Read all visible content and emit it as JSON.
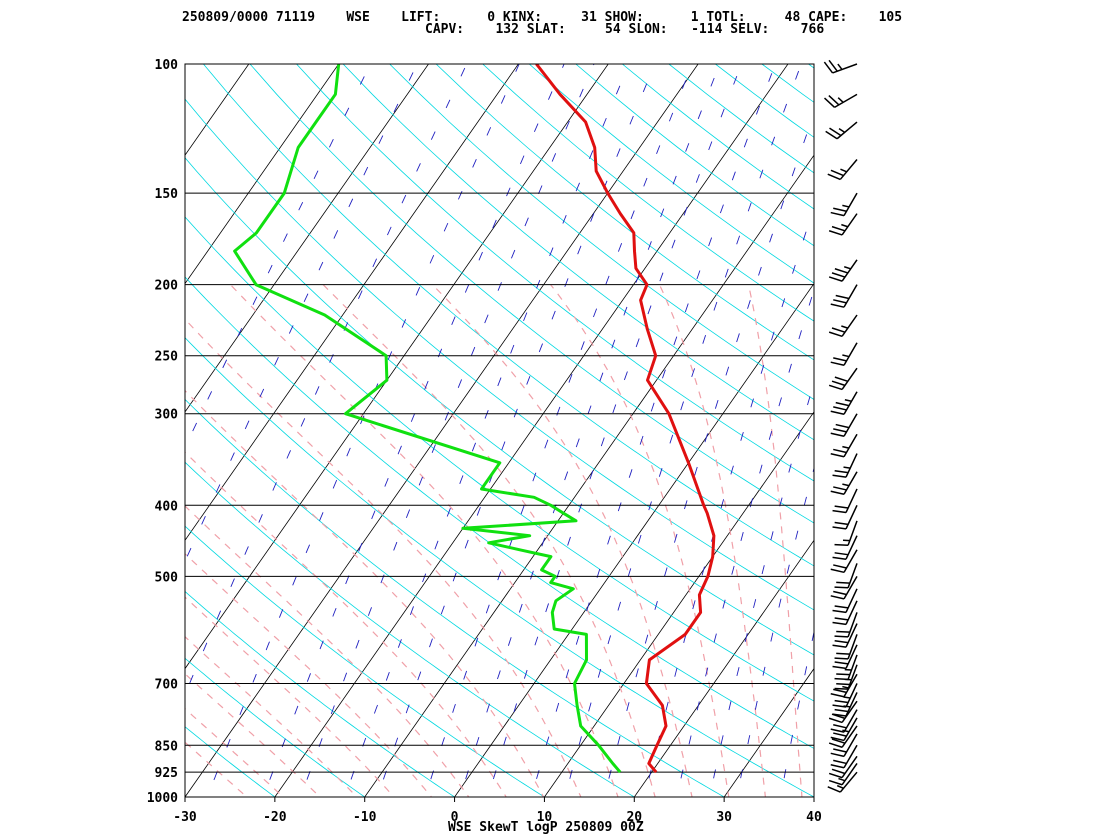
{
  "header": {
    "line1": "250809/0000 71119    WSE    LIFT:      0 KINX:     31 SHOW:      1 TOTL:     48 CAPE:    105",
    "line2": "CAPV:    132 SLAT:     54 SLON:   -114 SELV:    766"
  },
  "footer": "WSE SkewT logP 250809 00Z",
  "colors": {
    "isotherm": "#000000",
    "isobar": "#000000",
    "dry_adiabat": "#00d8e0",
    "moist_adiabat": "#f0a0a8",
    "mixing_ratio": "#2020c0",
    "temperature": "#e01010",
    "dewpoint": "#10e010",
    "wind_barb": "#000000"
  },
  "chart_data": {
    "type": "skewt-logp",
    "title": "WSE SkewT logP 250809 00Z",
    "station": "71119",
    "xlim": [
      -30,
      40
    ],
    "ylim": [
      1000,
      100
    ],
    "x_ticks": [
      "-30",
      "-20",
      "-10",
      "0",
      "10",
      "20",
      "30",
      "40"
    ],
    "y_ticks": [
      "100",
      "150",
      "200",
      "250",
      "300",
      "400",
      "500",
      "700",
      "850",
      "925",
      "1000"
    ],
    "pressure_levels": [
      1000,
      925,
      850,
      700,
      500,
      400,
      300,
      250,
      200,
      150,
      100
    ],
    "temperature_profile": [
      [
        925,
        20.5
      ],
      [
        900,
        19.0
      ],
      [
        850,
        18.5
      ],
      [
        800,
        18.0
      ],
      [
        750,
        16.0
      ],
      [
        700,
        12.5
      ],
      [
        650,
        11.0
      ],
      [
        600,
        13.0
      ],
      [
        560,
        13.0
      ],
      [
        530,
        11.5
      ],
      [
        500,
        11.0
      ],
      [
        470,
        10.0
      ],
      [
        440,
        8.5
      ],
      [
        410,
        6.0
      ],
      [
        400,
        5.0
      ],
      [
        350,
        0.0
      ],
      [
        300,
        -6.0
      ],
      [
        270,
        -11.0
      ],
      [
        250,
        -12.0
      ],
      [
        230,
        -15.0
      ],
      [
        210,
        -18.0
      ],
      [
        200,
        -18.5
      ],
      [
        190,
        -21.0
      ],
      [
        180,
        -22.5
      ],
      [
        170,
        -24.0
      ],
      [
        160,
        -27.0
      ],
      [
        150,
        -30.0
      ],
      [
        140,
        -33.0
      ],
      [
        130,
        -35.0
      ],
      [
        120,
        -38.0
      ],
      [
        110,
        -43.0
      ],
      [
        100,
        -48.0
      ]
    ],
    "dewpoint_profile": [
      [
        925,
        16.5
      ],
      [
        900,
        15.0
      ],
      [
        850,
        12.0
      ],
      [
        800,
        8.5
      ],
      [
        750,
        6.5
      ],
      [
        700,
        4.5
      ],
      [
        650,
        4.0
      ],
      [
        600,
        2.0
      ],
      [
        590,
        -2.0
      ],
      [
        560,
        -3.5
      ],
      [
        540,
        -4.0
      ],
      [
        520,
        -3.0
      ],
      [
        510,
        -6.0
      ],
      [
        500,
        -6.0
      ],
      [
        490,
        -8.0
      ],
      [
        470,
        -8.0
      ],
      [
        460,
        -12.0
      ],
      [
        450,
        -16.0
      ],
      [
        440,
        -12.0
      ],
      [
        430,
        -20.0
      ],
      [
        420,
        -8.0
      ],
      [
        410,
        -10.0
      ],
      [
        400,
        -12.0
      ],
      [
        390,
        -14.5
      ],
      [
        380,
        -21.0
      ],
      [
        350,
        -21.0
      ],
      [
        300,
        -42.0
      ],
      [
        270,
        -40.0
      ],
      [
        250,
        -42.0
      ],
      [
        220,
        -52.0
      ],
      [
        200,
        -62.0
      ],
      [
        180,
        -67.0
      ],
      [
        170,
        -66.0
      ],
      [
        150,
        -66.0
      ],
      [
        130,
        -68.0
      ],
      [
        120,
        -68.0
      ],
      [
        110,
        -68.0
      ],
      [
        100,
        -70.0
      ]
    ],
    "wind_profile": [
      [
        925,
        220,
        15
      ],
      [
        900,
        215,
        15
      ],
      [
        880,
        215,
        20
      ],
      [
        850,
        210,
        20
      ],
      [
        820,
        210,
        20
      ],
      [
        800,
        215,
        20
      ],
      [
        780,
        210,
        25
      ],
      [
        760,
        210,
        20
      ],
      [
        740,
        215,
        20
      ],
      [
        720,
        205,
        25
      ],
      [
        700,
        205,
        25
      ],
      [
        680,
        210,
        25
      ],
      [
        660,
        200,
        25
      ],
      [
        640,
        200,
        25
      ],
      [
        620,
        205,
        20
      ],
      [
        600,
        200,
        20
      ],
      [
        580,
        205,
        20
      ],
      [
        560,
        200,
        20
      ],
      [
        540,
        205,
        20
      ],
      [
        520,
        205,
        20
      ],
      [
        500,
        210,
        20
      ],
      [
        480,
        200,
        20
      ],
      [
        460,
        210,
        20
      ],
      [
        440,
        205,
        20
      ],
      [
        420,
        200,
        15
      ],
      [
        400,
        205,
        20
      ],
      [
        380,
        205,
        20
      ],
      [
        360,
        210,
        25
      ],
      [
        340,
        205,
        25
      ],
      [
        320,
        210,
        25
      ],
      [
        300,
        210,
        30
      ],
      [
        280,
        210,
        35
      ],
      [
        260,
        215,
        30
      ],
      [
        240,
        210,
        25
      ],
      [
        220,
        215,
        25
      ],
      [
        200,
        210,
        30
      ],
      [
        185,
        215,
        35
      ],
      [
        160,
        215,
        25
      ],
      [
        150,
        210,
        25
      ],
      [
        135,
        220,
        25
      ],
      [
        120,
        230,
        25
      ],
      [
        110,
        240,
        25
      ],
      [
        100,
        250,
        25
      ]
    ]
  }
}
